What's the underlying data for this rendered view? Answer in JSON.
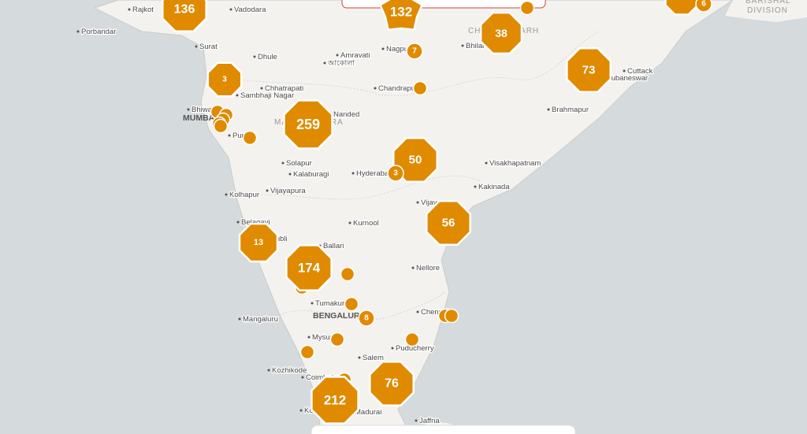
{
  "cities": [
    "Rajkot",
    "Vadodara",
    "Porbandar",
    "Surat",
    "Dhule",
    "Amravati",
    "আকোলা",
    "Nagpur",
    "Bhilai",
    "CHHATTISGARH",
    "Chhatrapati",
    "Sambhaji Nagar",
    "Chandrapur",
    "Bhiwandi",
    "MUMBAI",
    "Nanded",
    "MAHARASHTRA",
    "Pune",
    "Solapur",
    "Kalaburagi",
    "Hyderabad",
    "Visakhapatnam",
    "Kakinada",
    "Kolhapur",
    "Vijayapura",
    "Vijayawada",
    "Belagavi",
    "Hubli",
    "Kurnool",
    "Ballari",
    "Nellore",
    "Tumakuru",
    "BENGALURU",
    "Chennai",
    "Mangaluru",
    "Mysuru",
    "Puducherry",
    "Salem",
    "Kozhikode",
    "Coimbatore",
    "Kochi",
    "Madurai",
    "Jaffna",
    "Cuttack",
    "Bhubaneswar",
    "Brahmapur",
    "BARISHAL",
    "DIVISION"
  ],
  "clusters": [
    136,
    132,
    38,
    7,
    73,
    3,
    259,
    50,
    3,
    56,
    13,
    174,
    8,
    212,
    76,
    6
  ]
}
